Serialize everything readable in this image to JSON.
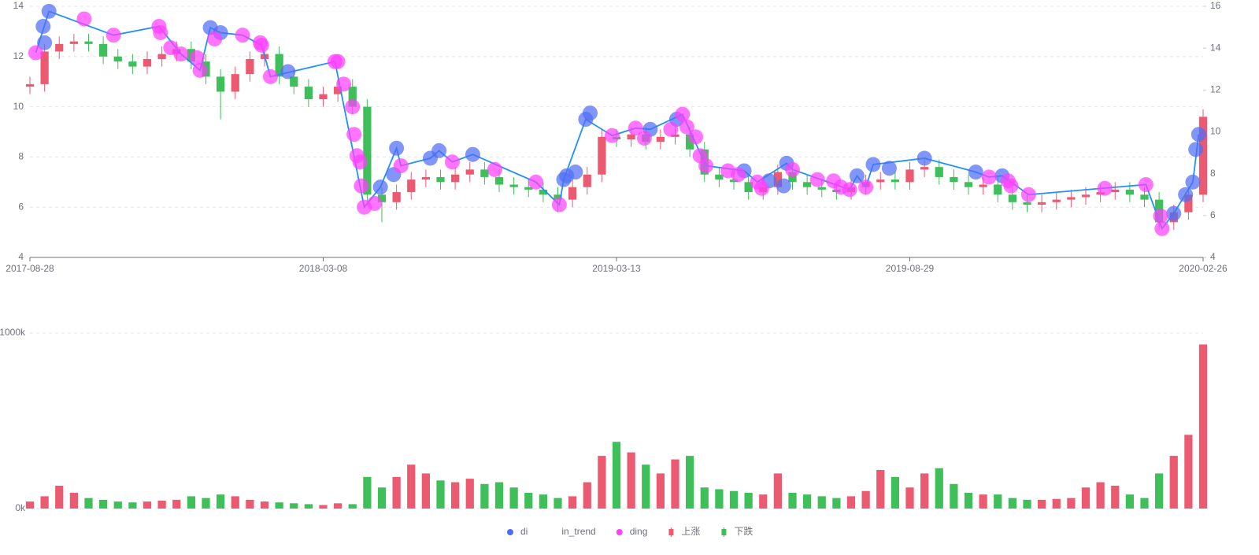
{
  "chart_data": {
    "type": "candlestick",
    "categories": [
      "2017-08-28",
      null,
      null,
      null,
      null,
      null,
      null,
      null,
      null,
      null,
      null,
      null,
      null,
      null,
      null,
      null,
      null,
      null,
      null,
      null,
      "2018-03-08",
      null,
      null,
      null,
      null,
      null,
      null,
      null,
      null,
      null,
      null,
      null,
      null,
      null,
      null,
      null,
      null,
      null,
      null,
      null,
      "2019-03-13",
      null,
      null,
      null,
      null,
      null,
      null,
      null,
      null,
      null,
      null,
      null,
      null,
      null,
      null,
      null,
      null,
      null,
      null,
      null,
      "2019-08-29",
      null,
      null,
      null,
      null,
      null,
      null,
      null,
      null,
      null,
      null,
      null,
      null,
      null,
      null,
      null,
      null,
      null,
      null,
      null,
      "2020-02-26"
    ],
    "open": [
      10.8,
      10.9,
      12.2,
      12.5,
      12.6,
      12.5,
      12.0,
      11.8,
      11.6,
      11.9,
      12.1,
      12.3,
      11.8,
      11.2,
      10.6,
      11.3,
      11.9,
      12.1,
      11.2,
      10.8,
      10.3,
      10.5,
      10.8,
      10.0,
      6.5,
      6.2,
      6.6,
      7.1,
      7.2,
      7.0,
      7.3,
      7.5,
      7.2,
      6.9,
      6.8,
      6.7,
      6.5,
      6.3,
      6.8,
      7.3,
      8.8,
      8.7,
      8.9,
      8.6,
      8.8,
      8.9,
      8.3,
      7.3,
      7.1,
      7.0,
      6.6,
      6.8,
      7.4,
      7.0,
      6.8,
      6.7,
      6.6,
      6.8,
      7.0,
      7.1,
      7.0,
      7.5,
      7.6,
      7.2,
      7.0,
      6.8,
      6.9,
      6.5,
      6.2,
      6.1,
      6.2,
      6.3,
      6.4,
      6.5,
      6.6,
      6.7,
      6.5,
      6.3,
      5.4,
      5.8,
      6.5
    ],
    "close": [
      10.9,
      12.2,
      12.5,
      12.6,
      12.5,
      12.0,
      11.8,
      11.6,
      11.9,
      12.1,
      12.3,
      11.8,
      11.2,
      10.6,
      11.3,
      11.9,
      12.1,
      11.2,
      10.8,
      10.3,
      10.5,
      10.8,
      10.0,
      6.5,
      6.2,
      6.6,
      7.1,
      7.2,
      7.0,
      7.3,
      7.5,
      7.2,
      6.9,
      6.8,
      6.7,
      6.5,
      6.3,
      6.8,
      7.3,
      8.8,
      8.7,
      8.9,
      8.6,
      8.8,
      8.9,
      8.3,
      7.3,
      7.1,
      7.0,
      6.6,
      6.8,
      7.4,
      7.0,
      6.8,
      6.7,
      6.6,
      6.8,
      7.0,
      7.1,
      7.0,
      7.5,
      7.6,
      7.2,
      7.0,
      6.8,
      6.9,
      6.5,
      6.2,
      6.1,
      6.2,
      6.3,
      6.4,
      6.5,
      6.6,
      6.7,
      6.5,
      6.3,
      5.4,
      5.8,
      6.5,
      9.6
    ],
    "high": [
      11.2,
      12.5,
      12.8,
      12.9,
      12.9,
      12.8,
      12.3,
      12.1,
      12.2,
      12.4,
      12.6,
      12.6,
      12.1,
      11.5,
      11.6,
      12.2,
      12.4,
      12.4,
      11.5,
      11.1,
      10.8,
      11.1,
      11.1,
      10.3,
      6.8,
      6.9,
      7.4,
      7.5,
      7.5,
      7.6,
      7.8,
      7.8,
      7.5,
      7.2,
      7.1,
      7.0,
      6.8,
      7.1,
      7.6,
      9.1,
      9.1,
      9.2,
      9.2,
      9.1,
      9.2,
      9.2,
      8.6,
      7.6,
      7.4,
      7.3,
      7.1,
      7.7,
      7.7,
      7.3,
      7.1,
      7.0,
      7.1,
      7.3,
      7.4,
      7.4,
      7.8,
      7.9,
      7.9,
      7.5,
      7.3,
      7.2,
      7.2,
      6.8,
      6.5,
      6.5,
      6.6,
      6.7,
      6.8,
      6.9,
      7.0,
      7.0,
      6.8,
      6.6,
      6.1,
      6.8,
      9.9
    ],
    "low": [
      10.5,
      10.6,
      11.9,
      12.2,
      12.2,
      11.7,
      11.5,
      11.3,
      11.3,
      11.6,
      11.8,
      11.5,
      10.9,
      9.5,
      10.3,
      11.0,
      11.6,
      10.9,
      10.5,
      10.0,
      10.0,
      10.2,
      9.7,
      6.2,
      5.4,
      5.9,
      6.3,
      6.8,
      6.7,
      6.7,
      7.0,
      6.9,
      6.6,
      6.5,
      6.4,
      6.2,
      5.8,
      6.0,
      6.5,
      7.0,
      8.4,
      8.4,
      8.3,
      8.3,
      8.5,
      8.0,
      7.0,
      6.8,
      6.7,
      6.3,
      6.3,
      6.5,
      6.7,
      6.5,
      6.4,
      6.3,
      6.3,
      6.5,
      6.7,
      6.7,
      6.7,
      7.2,
      6.9,
      6.7,
      6.5,
      6.5,
      6.2,
      5.9,
      5.8,
      5.8,
      5.9,
      6.0,
      6.1,
      6.2,
      6.3,
      6.2,
      6.0,
      5.1,
      5.1,
      5.5,
      6.2
    ],
    "up": {
      "name": "上涨",
      "color": "#ec5a72"
    },
    "down": {
      "name": "下跌",
      "color": "#3fbf5a"
    },
    "ylim": [
      4,
      14
    ],
    "yticks": [
      4,
      6,
      8,
      10,
      12,
      14
    ],
    "y2lim": [
      4,
      16
    ],
    "y2ticks": [
      4,
      6,
      8,
      10,
      12,
      14,
      16
    ],
    "grid": true,
    "points": [
      {
        "name": "di",
        "type": "scatter",
        "color": "#4f6df5",
        "x": [
          1.0,
          0.9,
          1.3,
          12.3,
          13.0,
          17.6,
          23.9,
          24.8,
          25.0,
          27.3,
          27.9,
          30.2,
          36.4,
          36.6,
          37.2,
          37.9,
          38.2,
          42.3,
          44.1,
          48.7,
          50.4,
          51.4,
          51.6,
          56.4,
          57.5,
          58.6,
          61.0,
          64.5,
          66.3,
          78.0,
          78.8,
          79.3,
          79.5,
          79.7
        ],
        "values": [
          12.55,
          13.2,
          13.8,
          13.15,
          12.95,
          11.4,
          6.8,
          7.3,
          8.35,
          7.95,
          8.25,
          8.1,
          7.1,
          7.25,
          7.4,
          9.5,
          9.75,
          9.1,
          9.5,
          7.45,
          7.05,
          6.85,
          7.75,
          7.25,
          7.7,
          7.55,
          7.95,
          7.4,
          7.25,
          5.75,
          6.5,
          7.0,
          8.3,
          8.9
        ]
      },
      {
        "name": "in_trend",
        "type": "line",
        "color": "#1e90ff",
        "x": [
          0.4,
          1.3,
          5.7,
          8.8,
          10.3,
          11.6,
          12.3,
          13.0,
          14.5,
          15.8,
          16.4,
          20.8,
          22.8,
          23.9,
          25.0,
          25.3,
          27.3,
          27.9,
          28.8,
          30.2,
          34.5,
          36.1,
          36.4,
          37.9,
          39.7,
          41.3,
          42.3,
          44.5,
          46.1,
          48.7,
          49.6,
          51.6,
          52.0,
          55.9,
          56.4,
          57.0,
          57.5,
          61.0,
          64.5,
          65.4,
          66.3,
          68.1,
          76.1,
          77.2,
          78.0,
          79.3,
          79.7
        ],
        "values": [
          12.15,
          13.8,
          12.85,
          13.2,
          12.1,
          11.45,
          13.15,
          12.95,
          12.85,
          12.45,
          11.2,
          11.8,
          6.0,
          6.8,
          8.35,
          7.65,
          7.95,
          8.25,
          7.8,
          8.1,
          7.0,
          6.1,
          7.1,
          9.5,
          8.85,
          9.15,
          9.1,
          9.7,
          7.65,
          7.45,
          7.0,
          7.75,
          7.5,
          6.7,
          7.25,
          6.8,
          7.7,
          7.95,
          7.4,
          7.2,
          7.25,
          6.5,
          6.9,
          5.15,
          5.75,
          7.0,
          8.9
        ]
      },
      {
        "name": "ding",
        "type": "scatter",
        "color": "#ff40ff",
        "x": [
          0.4,
          3.7,
          5.7,
          8.8,
          8.9,
          9.6,
          10.3,
          11.4,
          11.6,
          12.6,
          14.5,
          15.7,
          15.8,
          16.4,
          20.8,
          21.0,
          21.4,
          22.0,
          22.1,
          22.3,
          22.5,
          22.6,
          22.8,
          23.5,
          25.3,
          28.8,
          31.7,
          34.5,
          36.1,
          39.7,
          41.3,
          41.9,
          43.7,
          44.5,
          44.8,
          45.4,
          45.7,
          46.1,
          47.6,
          48.3,
          49.6,
          49.9,
          52.0,
          53.7,
          54.8,
          55.3,
          55.9,
          57.0,
          65.4,
          66.7,
          66.9,
          68.1,
          73.3,
          76.1,
          77.1,
          77.2
        ],
        "values": [
          12.15,
          13.5,
          12.85,
          13.2,
          12.95,
          12.35,
          12.1,
          11.95,
          11.45,
          12.7,
          12.85,
          12.55,
          12.45,
          11.2,
          11.8,
          11.8,
          10.9,
          10.0,
          8.9,
          8.05,
          7.8,
          6.85,
          6.0,
          6.15,
          7.65,
          7.8,
          7.5,
          7.0,
          6.1,
          8.85,
          9.15,
          8.75,
          9.1,
          9.7,
          9.2,
          8.8,
          8.05,
          7.65,
          7.45,
          7.3,
          7.0,
          6.75,
          7.5,
          7.1,
          7.05,
          6.8,
          6.7,
          6.8,
          7.2,
          7.05,
          6.85,
          6.5,
          6.75,
          6.9,
          5.65,
          5.15
        ]
      }
    ],
    "volume": {
      "values": [
        40,
        70,
        130,
        90,
        60,
        50,
        40,
        35,
        40,
        45,
        50,
        70,
        60,
        80,
        70,
        50,
        40,
        35,
        30,
        25,
        20,
        30,
        25,
        180,
        120,
        180,
        250,
        200,
        160,
        150,
        170,
        140,
        150,
        120,
        90,
        80,
        60,
        70,
        150,
        300,
        380,
        320,
        250,
        200,
        280,
        300,
        120,
        110,
        100,
        90,
        80,
        200,
        90,
        80,
        70,
        60,
        70,
        100,
        220,
        180,
        120,
        200,
        230,
        140,
        90,
        80,
        80,
        60,
        50,
        50,
        55,
        60,
        120,
        150,
        130,
        80,
        60,
        200,
        300,
        420,
        935
      ],
      "ylim": [
        0,
        1000
      ],
      "yticks": [
        {
          "value": 0,
          "label": "0k"
        },
        {
          "value": 1000,
          "label": "1000k"
        }
      ]
    }
  }
}
